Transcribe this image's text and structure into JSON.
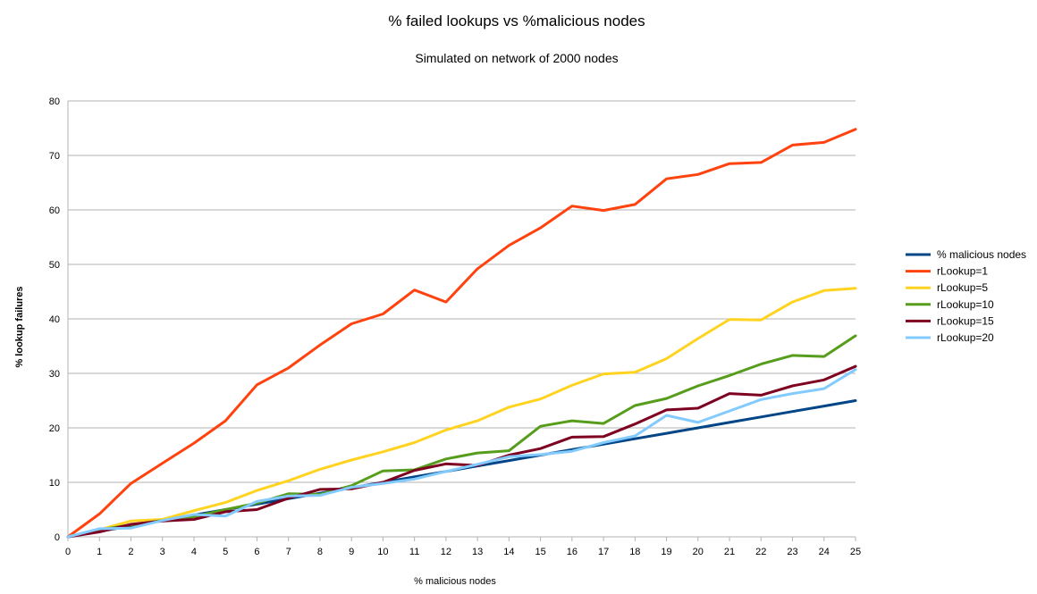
{
  "chart_data": {
    "type": "line",
    "title": "% failed lookups vs %malicious nodes",
    "subtitle": "Simulated on network of 2000 nodes",
    "xlabel": "% malicious nodes",
    "ylabel": "% lookup failures",
    "x": [
      0,
      1,
      2,
      3,
      4,
      5,
      6,
      7,
      8,
      9,
      10,
      11,
      12,
      13,
      14,
      15,
      16,
      17,
      18,
      19,
      20,
      21,
      22,
      23,
      24,
      25
    ],
    "xlim": [
      0,
      25
    ],
    "ylim": [
      0,
      80
    ],
    "y_ticks": [
      0,
      10,
      20,
      30,
      40,
      50,
      60,
      70,
      80
    ],
    "grid": "horizontal",
    "legend": "right",
    "series": [
      {
        "name": "% malicious nodes",
        "color": "#004586",
        "values": [
          0,
          1,
          2,
          3,
          4,
          5,
          6,
          7,
          8,
          9,
          10,
          11,
          12,
          13,
          14,
          15,
          16,
          17,
          18,
          19,
          20,
          21,
          22,
          23,
          24,
          25
        ]
      },
      {
        "name": "rLookup=1",
        "color": "#ff420e",
        "values": [
          0,
          4.2,
          9.8,
          13.5,
          17.2,
          21.3,
          27.9,
          31.0,
          35.2,
          39.1,
          40.9,
          45.3,
          43.1,
          49.2,
          53.5,
          56.7,
          60.7,
          59.9,
          61.0,
          65.7,
          66.5,
          68.5,
          68.7,
          71.9,
          72.4,
          74.8
        ]
      },
      {
        "name": "rLookup=5",
        "color": "#ffd320",
        "values": [
          0,
          1.3,
          2.9,
          3.2,
          4.8,
          6.3,
          8.5,
          10.3,
          12.4,
          14.1,
          15.6,
          17.3,
          19.6,
          21.3,
          23.8,
          25.3,
          27.8,
          29.9,
          30.2,
          32.7,
          36.4,
          39.9,
          39.8,
          43.1,
          45.2,
          45.6
        ]
      },
      {
        "name": "rLookup=10",
        "color": "#579d1c",
        "values": [
          0,
          1.3,
          2.2,
          3.0,
          3.7,
          5.0,
          6.2,
          7.9,
          7.8,
          9.4,
          12.1,
          12.3,
          14.3,
          15.4,
          15.8,
          20.3,
          21.3,
          20.8,
          24.1,
          25.4,
          27.7,
          29.6,
          31.7,
          33.3,
          33.1,
          36.9
        ]
      },
      {
        "name": "rLookup=15",
        "color": "#7e0021",
        "values": [
          0,
          0.9,
          2.3,
          2.9,
          3.2,
          4.6,
          5.0,
          7.1,
          8.7,
          8.8,
          10.0,
          12.2,
          13.4,
          13.1,
          15.0,
          16.2,
          18.3,
          18.4,
          20.7,
          23.3,
          23.6,
          26.3,
          26.0,
          27.7,
          28.8,
          31.3
        ]
      },
      {
        "name": "rLookup=20",
        "color": "#83caff",
        "values": [
          0,
          1.5,
          1.6,
          3.0,
          4.1,
          3.8,
          6.5,
          7.5,
          7.6,
          9.1,
          9.8,
          10.6,
          12.0,
          13.3,
          14.7,
          15.1,
          15.7,
          17.3,
          18.5,
          22.3,
          21.0,
          23.1,
          25.2,
          26.3,
          27.2,
          30.7
        ]
      }
    ]
  }
}
